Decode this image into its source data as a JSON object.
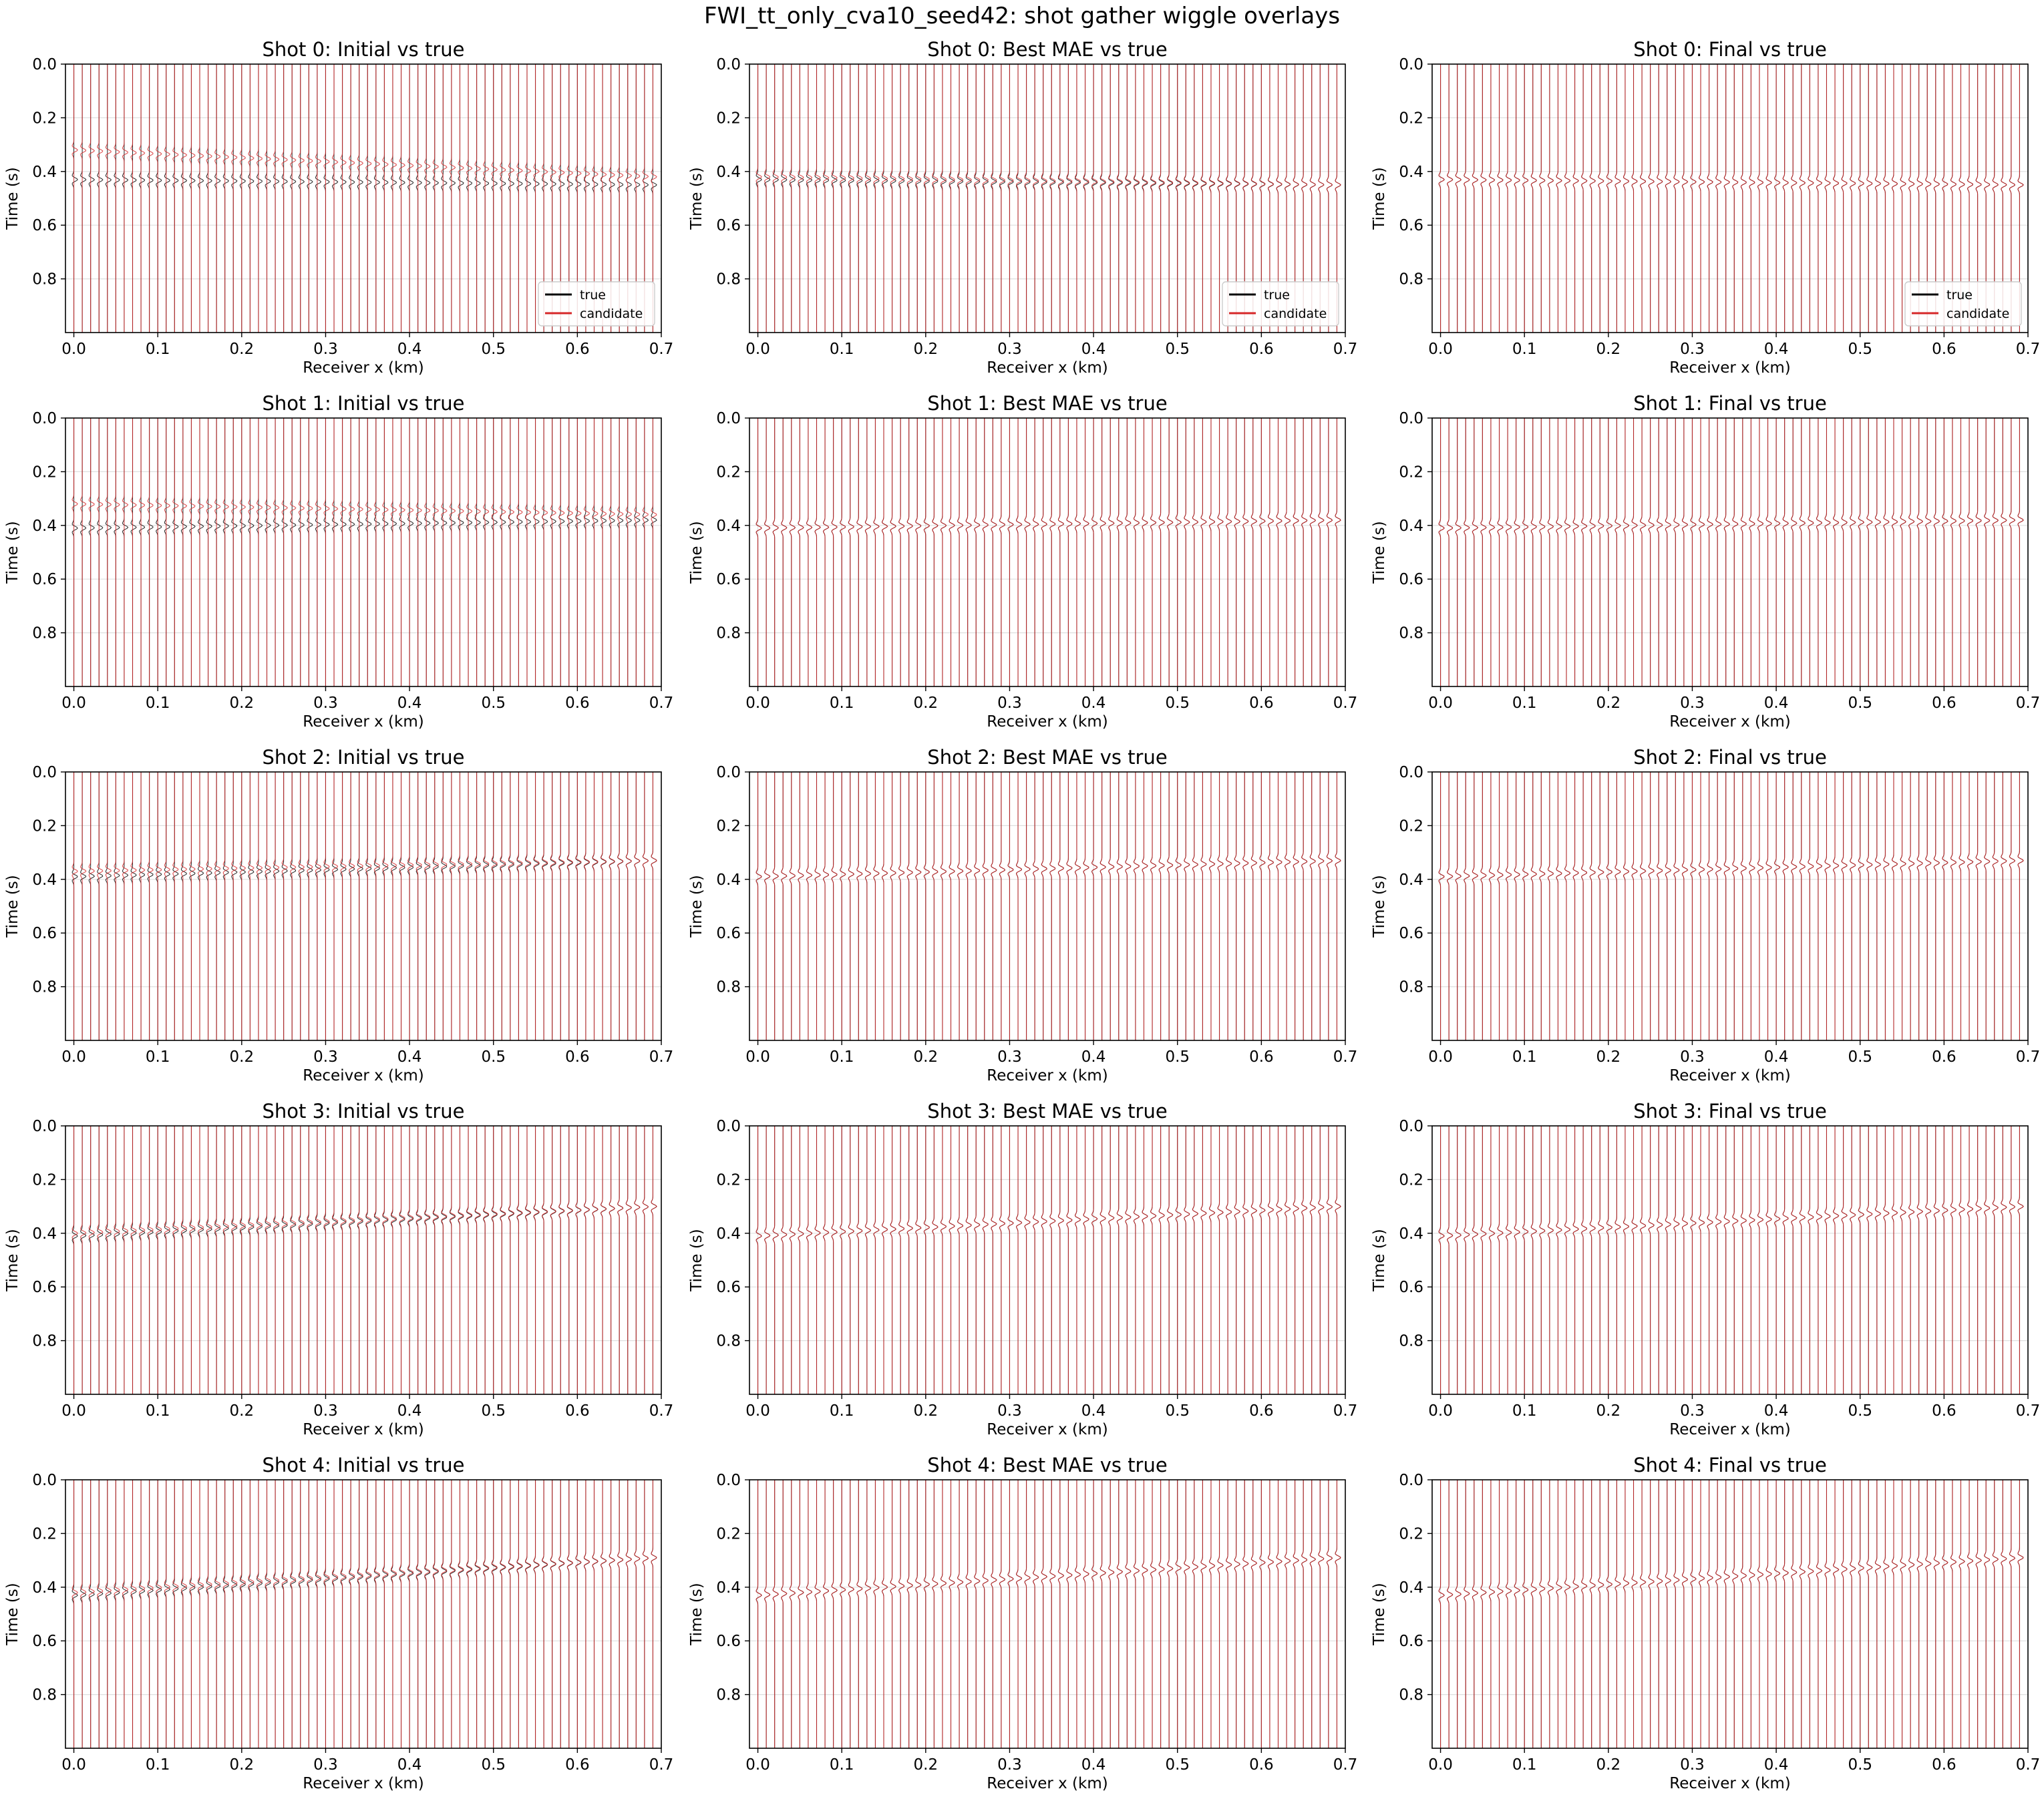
{
  "figure": {
    "suptitle": "FWI_tt_only_cva10_seed42: shot gather wiggle overlays"
  },
  "colors": {
    "true_trace": "#000000",
    "candidate_trace": "#d62728",
    "grid": "#b0b0b0"
  },
  "chart_data": {
    "type": "line",
    "layout": "5 rows x 3 columns of wiggle-trace panels",
    "shared_axes": {
      "xlabel": "Receiver x (km)",
      "ylabel": "Time (s)",
      "xlim": [
        -0.01,
        0.7
      ],
      "ylim": [
        1.0,
        0.0
      ],
      "y_inverted": true,
      "xticks": [
        "0.0",
        "0.1",
        "0.2",
        "0.3",
        "0.4",
        "0.5",
        "0.6",
        "0.7"
      ],
      "yticks": [
        "0.0",
        "0.2",
        "0.4",
        "0.6",
        "0.8"
      ],
      "grid": true
    },
    "receivers": {
      "count": 70,
      "x_start_km": 0.0,
      "spacing_km": 0.01
    },
    "legend": {
      "entries": [
        "true",
        "candidate"
      ],
      "location": "lower right",
      "shown_in_row": 0
    },
    "series_names": [
      "true",
      "candidate"
    ],
    "panels": [
      {
        "shot": 0,
        "title": "Shot 0: Initial vs true",
        "true_arrival_s": [
          0.43,
          0.45
        ],
        "candidate_arrival_s": [
          0.32,
          0.42
        ]
      },
      {
        "shot": 0,
        "title": "Shot 0: Best MAE vs true",
        "true_arrival_s": [
          0.43,
          0.45
        ],
        "candidate_arrival_s": [
          0.42,
          0.45
        ]
      },
      {
        "shot": 0,
        "title": "Shot 0: Final vs true",
        "true_arrival_s": [
          0.43,
          0.45
        ],
        "candidate_arrival_s": [
          0.43,
          0.45
        ]
      },
      {
        "shot": 1,
        "title": "Shot 1: Initial vs true",
        "true_arrival_s": [
          0.41,
          0.38
        ],
        "candidate_arrival_s": [
          0.32,
          0.36
        ]
      },
      {
        "shot": 1,
        "title": "Shot 1: Best MAE vs true",
        "true_arrival_s": [
          0.41,
          0.38
        ],
        "candidate_arrival_s": [
          0.41,
          0.38
        ]
      },
      {
        "shot": 1,
        "title": "Shot 1: Final vs true",
        "true_arrival_s": [
          0.41,
          0.38
        ],
        "candidate_arrival_s": [
          0.41,
          0.38
        ]
      },
      {
        "shot": 2,
        "title": "Shot 2: Initial vs true",
        "true_arrival_s": [
          0.39,
          0.33
        ],
        "candidate_arrival_s": [
          0.37,
          0.33
        ]
      },
      {
        "shot": 2,
        "title": "Shot 2: Best MAE vs true",
        "true_arrival_s": [
          0.39,
          0.33
        ],
        "candidate_arrival_s": [
          0.39,
          0.33
        ]
      },
      {
        "shot": 2,
        "title": "Shot 2: Final vs true",
        "true_arrival_s": [
          0.39,
          0.33
        ],
        "candidate_arrival_s": [
          0.39,
          0.33
        ]
      },
      {
        "shot": 3,
        "title": "Shot 3: Initial vs true",
        "true_arrival_s": [
          0.41,
          0.3
        ],
        "candidate_arrival_s": [
          0.4,
          0.3
        ]
      },
      {
        "shot": 3,
        "title": "Shot 3: Best MAE vs true",
        "true_arrival_s": [
          0.41,
          0.3
        ],
        "candidate_arrival_s": [
          0.41,
          0.3
        ]
      },
      {
        "shot": 3,
        "title": "Shot 3: Final vs true",
        "true_arrival_s": [
          0.41,
          0.3
        ],
        "candidate_arrival_s": [
          0.41,
          0.3
        ]
      },
      {
        "shot": 4,
        "title": "Shot 4: Initial vs true",
        "true_arrival_s": [
          0.43,
          0.29
        ],
        "candidate_arrival_s": [
          0.42,
          0.29
        ]
      },
      {
        "shot": 4,
        "title": "Shot 4: Best MAE vs true",
        "true_arrival_s": [
          0.43,
          0.29
        ],
        "candidate_arrival_s": [
          0.43,
          0.29
        ]
      },
      {
        "shot": 4,
        "title": "Shot 4: Final vs true",
        "true_arrival_s": [
          0.43,
          0.29
        ],
        "candidate_arrival_s": [
          0.43,
          0.29
        ]
      }
    ]
  }
}
